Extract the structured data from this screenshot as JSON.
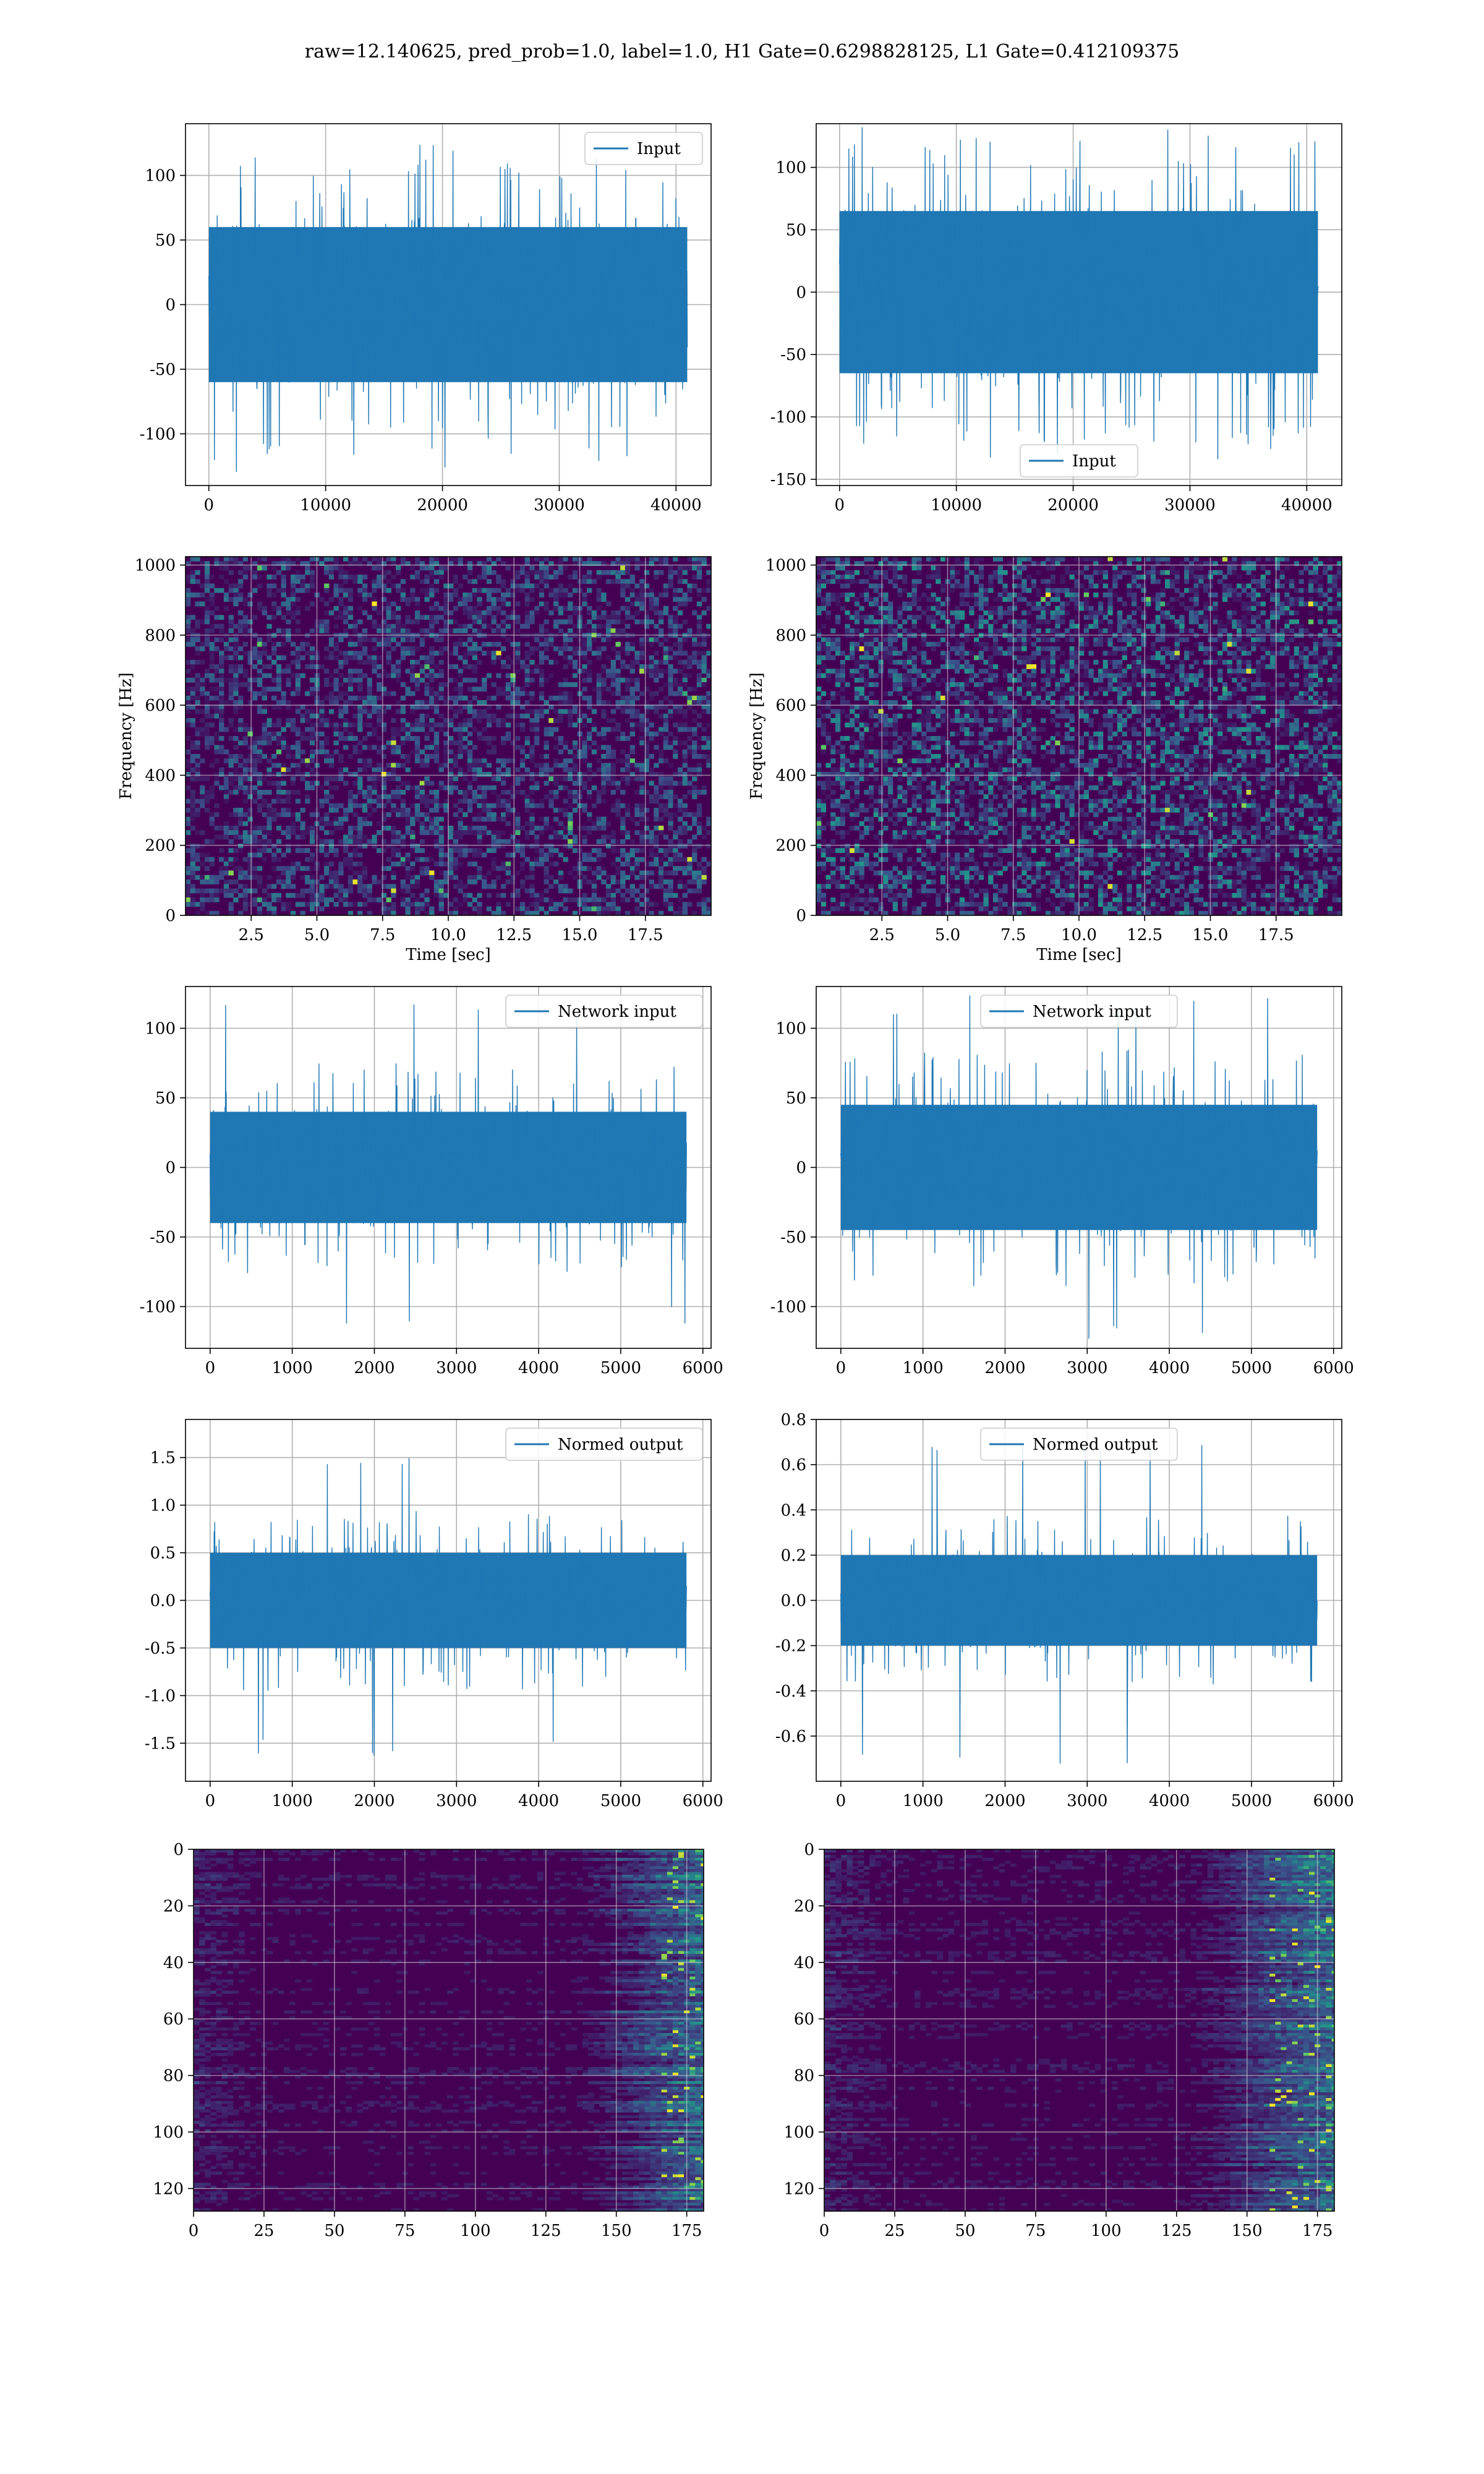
{
  "figure": {
    "suptitle": "raw=12.140625, pred_prob=1.0, label=1.0, H1 Gate=0.6298828125, L1 Gate=0.412109375"
  },
  "colors": {
    "line": "#1f77b4",
    "viridis_dark": "#440154",
    "grid": "#b0b0b0"
  },
  "chart_data": [
    {
      "type": "line",
      "row": 1,
      "col": 1,
      "title": "",
      "xlabel": "",
      "ylabel": "",
      "series": [
        {
          "name": "Input",
          "n_points": 40960,
          "amplitude_band": [
            -60,
            60
          ],
          "peak_range": [
            -130,
            130
          ]
        }
      ],
      "legend": "upper right",
      "xlim": [
        -2000,
        43000
      ],
      "ylim": [
        -140,
        140
      ],
      "xticks": [
        0,
        10000,
        20000,
        30000,
        40000
      ],
      "yticks": [
        -100,
        -50,
        0,
        50,
        100
      ],
      "grid": true
    },
    {
      "type": "line",
      "row": 1,
      "col": 2,
      "title": "",
      "xlabel": "",
      "ylabel": "",
      "series": [
        {
          "name": "Input",
          "n_points": 40960,
          "amplitude_band": [
            -65,
            65
          ],
          "peak_range": [
            -140,
            135
          ]
        }
      ],
      "legend": "lower center",
      "xlim": [
        -2000,
        43000
      ],
      "ylim": [
        -155,
        135
      ],
      "xticks": [
        0,
        10000,
        20000,
        30000,
        40000
      ],
      "yticks": [
        -150,
        -100,
        -50,
        0,
        50,
        100
      ],
      "grid": true
    },
    {
      "type": "heatmap",
      "row": 2,
      "col": 1,
      "xlabel": "Time [sec]",
      "ylabel": "Frequency [Hz]",
      "xlim": [
        0,
        20
      ],
      "ylim": [
        0,
        1024
      ],
      "xticks": [
        2.5,
        5.0,
        7.5,
        10.0,
        12.5,
        15.0,
        17.5
      ],
      "yticks": [
        0,
        200,
        400,
        600,
        800,
        1000
      ],
      "colormap": "viridis",
      "grid": true
    },
    {
      "type": "heatmap",
      "row": 2,
      "col": 2,
      "xlabel": "Time [sec]",
      "ylabel": "Frequency [Hz]",
      "xlim": [
        0,
        20
      ],
      "ylim": [
        0,
        1024
      ],
      "xticks": [
        2.5,
        5.0,
        7.5,
        10.0,
        12.5,
        15.0,
        17.5
      ],
      "yticks": [
        0,
        200,
        400,
        600,
        800,
        1000
      ],
      "colormap": "viridis",
      "grid": true
    },
    {
      "type": "line",
      "row": 3,
      "col": 1,
      "series": [
        {
          "name": "Network input",
          "n_points": 5800,
          "amplitude_band": [
            -40,
            40
          ],
          "peak_range": [
            -118,
            120
          ]
        }
      ],
      "legend": "upper right",
      "xlim": [
        -300,
        6100
      ],
      "ylim": [
        -130,
        130
      ],
      "xticks": [
        0,
        1000,
        2000,
        3000,
        4000,
        5000,
        6000
      ],
      "yticks": [
        -100,
        -50,
        0,
        50,
        100
      ],
      "grid": true
    },
    {
      "type": "line",
      "row": 3,
      "col": 2,
      "series": [
        {
          "name": "Network input",
          "n_points": 5800,
          "amplitude_band": [
            -45,
            45
          ],
          "peak_range": [
            -128,
            125
          ]
        }
      ],
      "legend": "upper center",
      "xlim": [
        -300,
        6100
      ],
      "ylim": [
        -130,
        130
      ],
      "xticks": [
        0,
        1000,
        2000,
        3000,
        4000,
        5000,
        6000
      ],
      "yticks": [
        -100,
        -50,
        0,
        50,
        100
      ],
      "grid": true
    },
    {
      "type": "line",
      "row": 4,
      "col": 1,
      "series": [
        {
          "name": "Normed output",
          "n_points": 5800,
          "amplitude_band": [
            -0.5,
            0.5
          ],
          "peak_range": [
            -1.7,
            1.6
          ]
        }
      ],
      "legend": "upper right",
      "xlim": [
        -300,
        6100
      ],
      "ylim": [
        -1.9,
        1.9
      ],
      "xticks": [
        0,
        1000,
        2000,
        3000,
        4000,
        5000,
        6000
      ],
      "yticks": [
        -1.5,
        -1.0,
        -0.5,
        0.0,
        0.5,
        1.0,
        1.5
      ],
      "grid": true
    },
    {
      "type": "line",
      "row": 4,
      "col": 2,
      "series": [
        {
          "name": "Normed output",
          "n_points": 5800,
          "amplitude_band": [
            -0.2,
            0.2
          ],
          "peak_range": [
            -0.75,
            0.7
          ]
        }
      ],
      "legend": "upper center",
      "xlim": [
        -300,
        6100
      ],
      "ylim": [
        -0.8,
        0.8
      ],
      "xticks": [
        0,
        1000,
        2000,
        3000,
        4000,
        5000,
        6000
      ],
      "yticks": [
        -0.6,
        -0.4,
        -0.2,
        0.0,
        0.2,
        0.4,
        0.6,
        0.8
      ],
      "grid": true
    },
    {
      "type": "heatmap",
      "row": 5,
      "col": 1,
      "xlim": [
        0,
        181
      ],
      "ylim": [
        128,
        0
      ],
      "xticks": [
        0,
        25,
        50,
        75,
        100,
        125,
        150,
        175
      ],
      "yticks": [
        0,
        20,
        40,
        60,
        80,
        100,
        120
      ],
      "colormap": "viridis",
      "grid": true
    },
    {
      "type": "heatmap",
      "row": 5,
      "col": 2,
      "xlim": [
        0,
        181
      ],
      "ylim": [
        128,
        0
      ],
      "xticks": [
        0,
        25,
        50,
        75,
        100,
        125,
        150,
        175
      ],
      "yticks": [
        0,
        20,
        40,
        60,
        80,
        100,
        120
      ],
      "colormap": "viridis",
      "grid": true
    }
  ]
}
